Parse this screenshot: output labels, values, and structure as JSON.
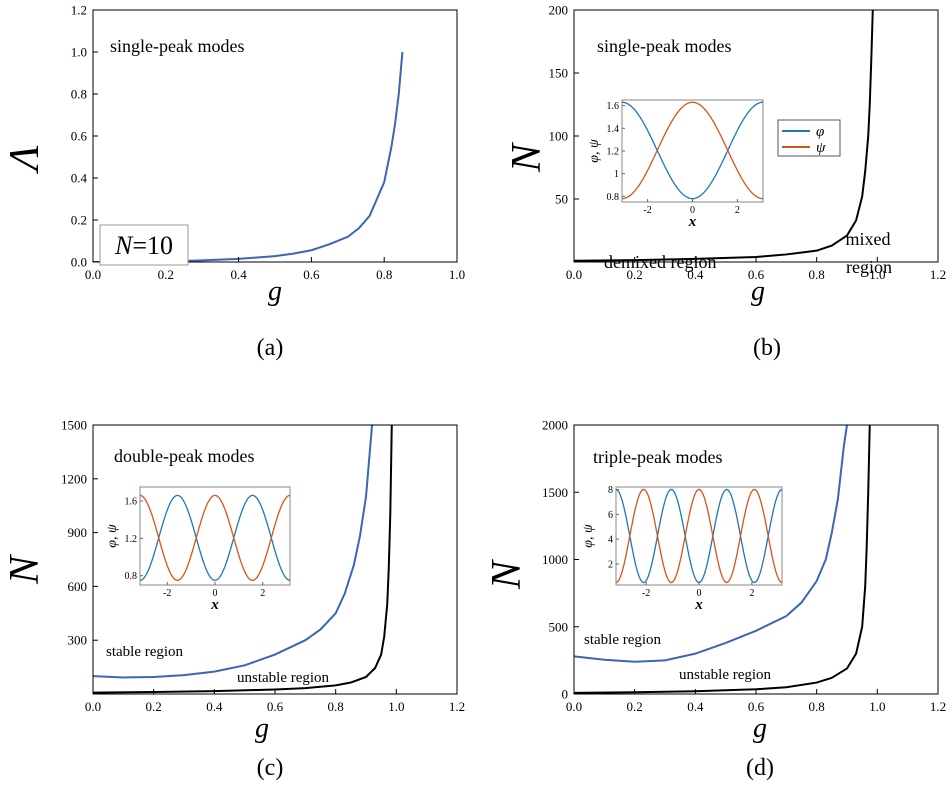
{
  "panels": [
    {
      "caption": "(a)",
      "xlabel": "g",
      "ylabel": "Λ",
      "annotations": [
        {
          "text": "single-peak modes"
        }
      ],
      "boxed_label": {
        "var": "N",
        "rest": "=10"
      }
    },
    {
      "caption": "(b)",
      "xlabel": "g",
      "ylabel": "N",
      "annotations": [
        {
          "text": "single-peak modes"
        },
        {
          "text": "demixed region"
        },
        {
          "text": "mixed"
        },
        {
          "text": "region"
        }
      ],
      "inset": {
        "ylabel": "φ, ψ",
        "xlabel": "x",
        "legend": [
          "φ",
          "ψ"
        ]
      }
    },
    {
      "caption": "(c)",
      "xlabel": "g",
      "ylabel": "N",
      "annotations": [
        {
          "text": "double-peak modes"
        },
        {
          "text": "stable region"
        },
        {
          "text": "unstable region"
        }
      ],
      "inset": {
        "ylabel": "φ, ψ",
        "xlabel": "x"
      }
    },
    {
      "caption": "(d)",
      "xlabel": "g",
      "ylabel": "N",
      "annotations": [
        {
          "text": "triple-peak modes"
        },
        {
          "text": "stable region"
        },
        {
          "text": "unstable region"
        }
      ],
      "inset": {
        "ylabel": "φ, ψ",
        "xlabel": "x"
      }
    }
  ],
  "colors": {
    "blue": "#3a66b4",
    "black": "#000000",
    "inset_blue": "#1f77b4",
    "inset_orange": "#d95319"
  },
  "chart_data": [
    {
      "type": "line",
      "xlabel": "g",
      "ylabel": "Λ",
      "xlim": [
        0,
        1.0
      ],
      "ylim": [
        0,
        1.2
      ],
      "xticks": [
        "0.0",
        "0.2",
        "0.4",
        "0.6",
        "0.8",
        "1.0"
      ],
      "yticks": [
        "0.0",
        "0.2",
        "0.4",
        "0.6",
        "0.8",
        "1.0",
        "1.2"
      ],
      "series": [
        {
          "color": "blue",
          "x": [
            0,
            0.1,
            0.2,
            0.3,
            0.4,
            0.5,
            0.55,
            0.6,
            0.65,
            0.7,
            0.73,
            0.76,
            0.78,
            0.8,
            0.82,
            0.83,
            0.84,
            0.85
          ],
          "y": [
            0,
            0.001,
            0.003,
            0.008,
            0.015,
            0.028,
            0.04,
            0.056,
            0.085,
            0.12,
            0.16,
            0.22,
            0.3,
            0.38,
            0.55,
            0.66,
            0.8,
            1.0
          ]
        }
      ]
    },
    {
      "type": "line",
      "xlabel": "g",
      "ylabel": "N",
      "xlim": [
        0,
        1.2
      ],
      "ylim": [
        0,
        200
      ],
      "xticks": [
        "0.0",
        "0.2",
        "0.4",
        "0.6",
        "0.8",
        "1.0",
        "1.2"
      ],
      "yticks": [
        "50",
        "100",
        "150",
        "200"
      ],
      "series": [
        {
          "color": "black",
          "x": [
            0,
            0.2,
            0.4,
            0.6,
            0.7,
            0.8,
            0.85,
            0.9,
            0.93,
            0.95,
            0.96,
            0.97,
            0.975,
            0.98,
            0.985
          ],
          "y": [
            1,
            1.5,
            2.5,
            4,
            6,
            9,
            13,
            21,
            33,
            52,
            72,
            100,
            125,
            160,
            200
          ]
        }
      ],
      "inset": {
        "xlim": [
          -3.14,
          3.14
        ],
        "ylim": [
          0.75,
          1.65
        ],
        "xticks": [
          "-2",
          "0",
          "2"
        ],
        "yticks": [
          "0.8",
          "1",
          "1.2",
          "1.4",
          "1.6"
        ],
        "center": 1.205,
        "amplitude": 0.425,
        "k": 1
      }
    },
    {
      "type": "line",
      "xlabel": "g",
      "ylabel": "N",
      "xlim": [
        0,
        1.2
      ],
      "ylim": [
        0,
        1500
      ],
      "xticks": [
        "0.0",
        "0.2",
        "0.4",
        "0.6",
        "0.8",
        "1.0",
        "1.2"
      ],
      "yticks": [
        "300",
        "600",
        "900",
        "1200",
        "1500"
      ],
      "series": [
        {
          "color": "blue",
          "x": [
            0,
            0.1,
            0.2,
            0.3,
            0.4,
            0.5,
            0.6,
            0.7,
            0.75,
            0.8,
            0.83,
            0.86,
            0.88,
            0.9,
            0.91,
            0.92
          ],
          "y": [
            100,
            92,
            95,
            105,
            125,
            160,
            220,
            300,
            360,
            450,
            560,
            720,
            880,
            1100,
            1300,
            1500
          ]
        },
        {
          "color": "black",
          "x": [
            0,
            0.2,
            0.4,
            0.6,
            0.7,
            0.8,
            0.85,
            0.9,
            0.93,
            0.95,
            0.96,
            0.97,
            0.975,
            0.98,
            0.985
          ],
          "y": [
            8,
            11,
            16,
            25,
            33,
            48,
            64,
            95,
            145,
            220,
            320,
            500,
            700,
            1000,
            1500
          ]
        }
      ],
      "inset": {
        "xlim": [
          -3.14,
          3.14
        ],
        "ylim": [
          0.7,
          1.75
        ],
        "xticks": [
          "-2",
          "0",
          "2"
        ],
        "yticks": [
          "0.8",
          "1.2",
          "1.6"
        ],
        "center": 1.205,
        "amplitude": 0.455,
        "k": 2
      }
    },
    {
      "type": "line",
      "xlabel": "g",
      "ylabel": "N",
      "xlim": [
        0,
        1.2
      ],
      "ylim": [
        0,
        2000
      ],
      "xticks": [
        "0.0",
        "0.2",
        "0.4",
        "0.6",
        "0.8",
        "1.0",
        "1.2"
      ],
      "yticks": [
        "0",
        "500",
        "1000",
        "1500",
        "2000"
      ],
      "series": [
        {
          "color": "blue",
          "x": [
            0,
            0.1,
            0.2,
            0.3,
            0.4,
            0.5,
            0.6,
            0.7,
            0.75,
            0.8,
            0.83,
            0.85,
            0.87,
            0.88,
            0.89,
            0.9
          ],
          "y": [
            280,
            255,
            240,
            250,
            300,
            380,
            470,
            580,
            680,
            840,
            1000,
            1200,
            1450,
            1650,
            1850,
            2000
          ]
        },
        {
          "color": "black",
          "x": [
            0,
            0.2,
            0.4,
            0.6,
            0.7,
            0.8,
            0.85,
            0.9,
            0.93,
            0.95,
            0.96,
            0.965,
            0.97,
            0.975
          ],
          "y": [
            8,
            13,
            20,
            35,
            50,
            85,
            120,
            190,
            300,
            500,
            800,
            1100,
            1500,
            2000
          ]
        }
      ],
      "inset": {
        "xlim": [
          -3.14,
          3.14
        ],
        "ylim": [
          0.3,
          8.2
        ],
        "xticks": [
          "-2",
          "0",
          "2"
        ],
        "yticks": [
          "2",
          "4",
          "6",
          "8"
        ],
        "center": 4.25,
        "amplitude": 3.75,
        "k": 3
      }
    }
  ]
}
